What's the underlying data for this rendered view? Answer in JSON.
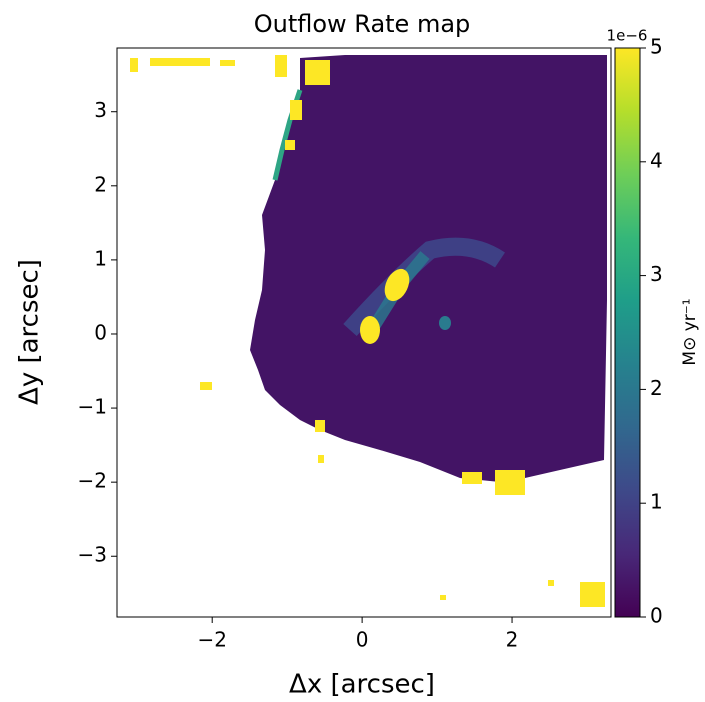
{
  "chart_data": {
    "type": "image",
    "title": "Outflow Rate map",
    "xlabel": "Δx [arcsec]",
    "ylabel": "Δy [arcsec]",
    "xlim": [
      -3.27,
      3.32
    ],
    "ylim": [
      -3.82,
      3.86
    ],
    "xticks": [
      {
        "value": -2,
        "label": "−2"
      },
      0,
      2
    ],
    "yticks": [
      {
        "value": -3,
        "label": "−3"
      },
      {
        "value": -2,
        "label": "−2"
      },
      {
        "value": -1,
        "label": "−1"
      },
      0,
      1,
      2,
      3
    ],
    "colorbar": {
      "label": "M⊙ yr⁻¹",
      "offset_label": "1e−6",
      "clim": [
        0,
        5
      ],
      "ticks": [
        0,
        1,
        2,
        3,
        4,
        5
      ],
      "colors": [
        "#440154",
        "#482878",
        "#3e4989",
        "#31688e",
        "#26828e",
        "#1f9e89",
        "#35b779",
        "#6ece58",
        "#b5de2b",
        "#fde725"
      ]
    }
  }
}
